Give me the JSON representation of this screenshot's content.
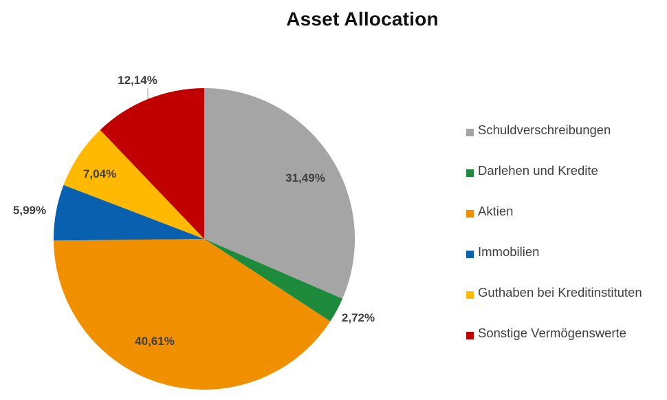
{
  "chart_data": {
    "type": "pie",
    "title": "Asset Allocation",
    "slices": [
      {
        "name": "Schuldverschreibungen",
        "value": 31.49,
        "label": "31,49%",
        "color": "#A5A5A5"
      },
      {
        "name": "Darlehen und Kredite",
        "value": 2.72,
        "label": "2,72%",
        "color": "#1E8A3C"
      },
      {
        "name": "Aktien",
        "value": 40.61,
        "label": "40,61%",
        "color": "#F09000"
      },
      {
        "name": "Immobilien",
        "value": 5.99,
        "label": "5,99%",
        "color": "#0860AF"
      },
      {
        "name": "Guthaben bei Kreditinstituten",
        "value": 7.04,
        "label": "7,04%",
        "color": "#FFB900"
      },
      {
        "name": "Sonstige Vermögenswerte",
        "value": 12.14,
        "label": "12,14%",
        "color": "#C00000"
      }
    ],
    "legend_position": "right"
  }
}
